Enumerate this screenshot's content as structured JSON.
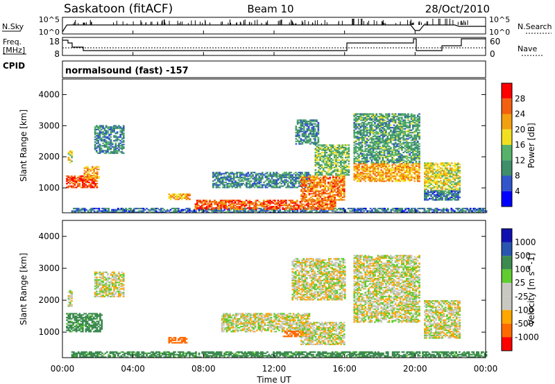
{
  "header": {
    "station": "Saskatoon (fitACF)",
    "beam": "Beam 10",
    "date": "28/Oct/2010"
  },
  "top_panels": {
    "nsky_label": "N.Sky",
    "nsky_ticks": [
      "10^5",
      "10^0"
    ],
    "nsearch_label": "N.Search",
    "nsearch_ticks": [
      "10^5",
      "10^0"
    ],
    "freq_label_1": "Freq.",
    "freq_label_2": "[MHz]",
    "freq_ticks": [
      "18",
      "8"
    ],
    "nave_label": "Nave",
    "nave_ticks": [
      "60",
      "0"
    ],
    "cpid_label": "CPID",
    "cpid_value": "normalsound (fast) -157"
  },
  "colors": {
    "power_scale": [
      "#0000ff",
      "#3355cc",
      "#3f8f6a",
      "#56b26a",
      "#f2e020",
      "#f2a010",
      "#f26010",
      "#ff0000"
    ],
    "velocity_scale": [
      "#ff0000",
      "#ff6a00",
      "#ffa600",
      "#c8c8c0",
      "#c8c8c0",
      "#60cc30",
      "#3c8a50",
      "#2855b0",
      "#1010b0"
    ]
  },
  "chart_data": [
    {
      "type": "heatmap",
      "name": "power",
      "ylabel": "Slant Range [km]",
      "yticks": [
        "1000",
        "2000",
        "3000",
        "4000"
      ],
      "ylim": [
        200,
        4500
      ],
      "xlim": [
        0,
        24
      ],
      "colorbar_label": "Power [dB]",
      "colorbar_ticks": [
        "4",
        "8",
        "12",
        "16",
        "20",
        "24",
        "28"
      ],
      "colorbar_range": [
        0,
        32
      ],
      "regions": [
        {
          "t": [
            0.2,
            2.0
          ],
          "r": [
            1000,
            1400
          ],
          "v": 28
        },
        {
          "t": [
            0.3,
            0.5
          ],
          "r": [
            1800,
            2200
          ],
          "v": 18
        },
        {
          "t": [
            1.2,
            2.1
          ],
          "r": [
            1300,
            1700
          ],
          "v": 22
        },
        {
          "t": [
            1.8,
            3.5
          ],
          "r": [
            2100,
            3000
          ],
          "v": 10
        },
        {
          "t": [
            0.5,
            24.0
          ],
          "r": [
            200,
            350
          ],
          "v": 8
        },
        {
          "t": [
            6.0,
            7.2
          ],
          "r": [
            620,
            820
          ],
          "v": 22
        },
        {
          "t": [
            7.5,
            15.5
          ],
          "r": [
            300,
            600
          ],
          "v": 26
        },
        {
          "t": [
            8.5,
            14.0
          ],
          "r": [
            1000,
            1500
          ],
          "v": 10
        },
        {
          "t": [
            13.5,
            16.0
          ],
          "r": [
            600,
            1400
          ],
          "v": 24
        },
        {
          "t": [
            13.2,
            14.5
          ],
          "r": [
            2400,
            3200
          ],
          "v": 10
        },
        {
          "t": [
            14.3,
            16.2
          ],
          "r": [
            1400,
            2400
          ],
          "v": 14
        },
        {
          "t": [
            16.5,
            20.2
          ],
          "r": [
            1200,
            1800
          ],
          "v": 22
        },
        {
          "t": [
            16.5,
            20.2
          ],
          "r": [
            1800,
            3400
          ],
          "v": 12
        },
        {
          "t": [
            20.5,
            22.5
          ],
          "r": [
            900,
            1800
          ],
          "v": 18
        },
        {
          "t": [
            20.5,
            22.5
          ],
          "r": [
            600,
            900
          ],
          "v": 8
        }
      ]
    },
    {
      "type": "heatmap",
      "name": "velocity",
      "ylabel": "Slant Range [km]",
      "yticks": [
        "1000",
        "2000",
        "3000",
        "4000"
      ],
      "ylim": [
        200,
        4500
      ],
      "xlim": [
        0,
        24
      ],
      "xlabel": "Time UT",
      "xticks": [
        "00:00",
        "04:00",
        "08:00",
        "12:00",
        "16:00",
        "20:00",
        "00:00"
      ],
      "colorbar_label": "Velocity [m s^-1]",
      "colorbar_ticks": [
        "1000",
        "500",
        "100",
        "25",
        "-25",
        "-100",
        "-500",
        "-1000"
      ],
      "regions": [
        {
          "t": [
            0.2,
            2.2
          ],
          "r": [
            1000,
            1600
          ],
          "v": 150
        },
        {
          "t": [
            0.3,
            0.5
          ],
          "r": [
            1800,
            2300
          ],
          "v": 0
        },
        {
          "t": [
            1.8,
            3.5
          ],
          "r": [
            2100,
            2900
          ],
          "v": 0
        },
        {
          "t": [
            0.5,
            24.0
          ],
          "r": [
            200,
            400
          ],
          "v": 150
        },
        {
          "t": [
            6.0,
            7.0
          ],
          "r": [
            650,
            820
          ],
          "v": -200
        },
        {
          "t": [
            9.0,
            14.0
          ],
          "r": [
            1000,
            1600
          ],
          "v": 0
        },
        {
          "t": [
            12.5,
            14.0
          ],
          "r": [
            850,
            1050
          ],
          "v": -200
        },
        {
          "t": [
            13.0,
            16.0
          ],
          "r": [
            2000,
            3300
          ],
          "v": 0
        },
        {
          "t": [
            13.5,
            16.0
          ],
          "r": [
            600,
            1300
          ],
          "v": 0
        },
        {
          "t": [
            16.5,
            20.2
          ],
          "r": [
            1300,
            3400
          ],
          "v": 0
        },
        {
          "t": [
            20.5,
            22.5
          ],
          "r": [
            800,
            2000
          ],
          "v": 0
        }
      ]
    }
  ]
}
